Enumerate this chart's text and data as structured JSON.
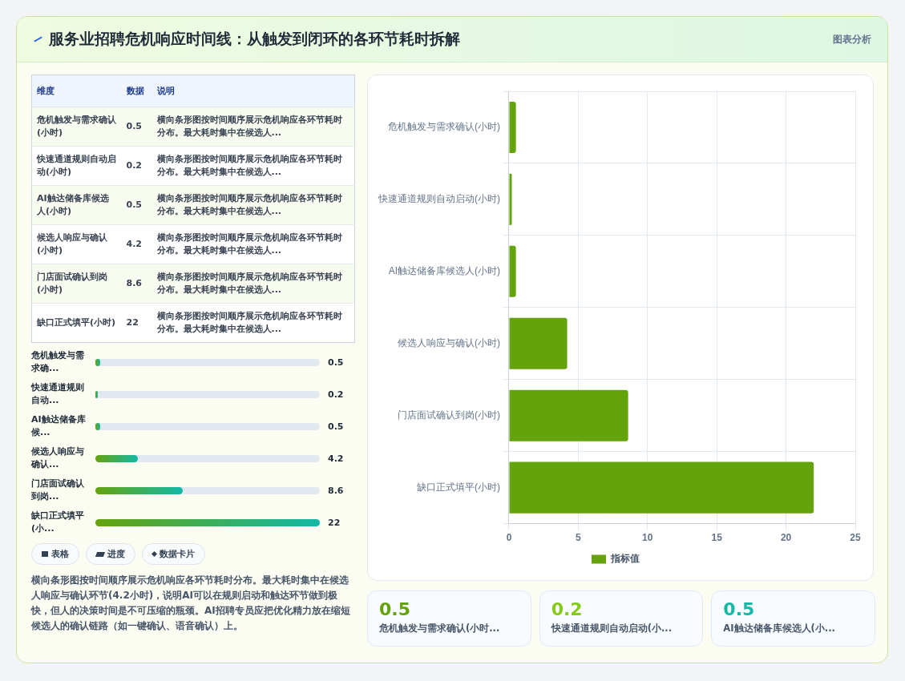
{
  "chart_data": [
    {
      "type": "other",
      "title": "服务业招聘危机响应时间线：从触发到闭环的各环节耗时拆解",
      "annotations": [
        "图表分析"
      ]
    },
    {
      "type": "other",
      "categories": [
        "危机触发与需求确认(小时)",
        "快速通道规则自动启动(小时)",
        "AI触达储备库候选人(小时)",
        "候选人响应与确认(小时)",
        "门店面试确认到岗(小时)",
        "缺口正式填平(小时)"
      ],
      "values": [
        0.5,
        0.2,
        0.5,
        4.2,
        8.6,
        22
      ],
      "data_labels": true,
      "annotations": [
        "维度",
        "数据",
        "说明",
        "横向条形图按时间顺序展示危机响应各环节耗时分布。最大耗时集中在候选人..."
      ]
    },
    {
      "type": "bar",
      "orientation": "horizontal",
      "categories": [
        "危机触发与需求确...",
        "快速通道规则自动...",
        "AI触达储备库候...",
        "候选人响应与确认...",
        "门店面试确认到岗...",
        "缺口正式填平(小..."
      ],
      "values": [
        0.5,
        0.2,
        0.5,
        4.2,
        8.6,
        22
      ],
      "data_labels": true,
      "annotations": [
        "表格",
        "进度",
        "数据卡片",
        "横向条形图按时间顺序展示危机响应各环节耗时分布。最大耗时集中在候选人响应与确认环节(4.2小时)，说明AI可以在规则启动和触达环节做到极快，但人的决策时间是不可压缩的瓶颈。AI招聘专员应把优化精力放在缩短候选人的确认链路（如一键确认、语音确认）上。"
      ]
    },
    {
      "type": "bar",
      "orientation": "horizontal",
      "categories": [
        "危机触发与需求确认(小时)",
        "快速通道规则自动启动(小时)",
        "AI触达储备库候选人(小时)",
        "候选人响应与确认(小时)",
        "门店面试确认到岗(小时)",
        "缺口正式填平(小时)"
      ],
      "series": [
        {
          "name": "指标值",
          "color": "#65a30d",
          "values": [
            0.5,
            0.2,
            0.5,
            4.2,
            8.6,
            22
          ]
        }
      ],
      "xlim": [
        0,
        25
      ],
      "xticks": [
        0,
        5,
        10,
        15,
        20,
        25
      ],
      "grid": true,
      "legend": "bottom"
    },
    {
      "type": "other",
      "categories": [
        "危机触发与需求确认(小时...",
        "快速通道规则自动启动(小...",
        "AI触达储备库候选人(小..."
      ],
      "values": [
        0.5,
        0.2,
        0.5
      ],
      "data_labels": true
    }
  ]
}
